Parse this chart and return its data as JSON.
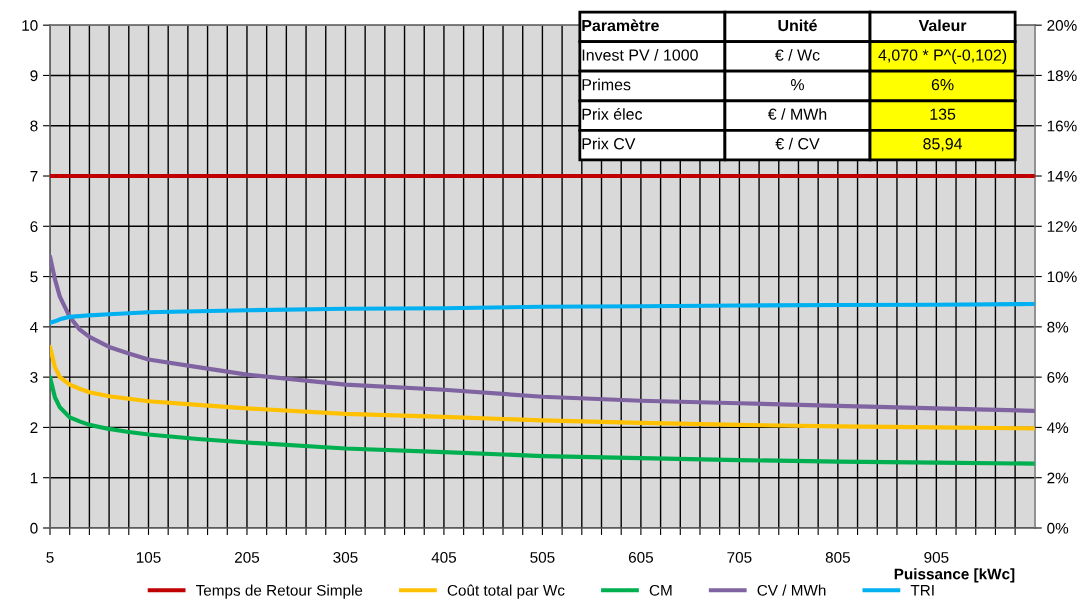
{
  "chart_data": {
    "type": "line",
    "xlabel": "Puissance [kWc]",
    "xlim": [
      5,
      1005
    ],
    "xticks": [
      5,
      {
        "value": 25,
        "label": null
      },
      {
        "value": 45,
        "label": null
      },
      {
        "value": 65,
        "label": null
      },
      {
        "value": 85,
        "label": null
      },
      105,
      {
        "value": 125,
        "label": null
      },
      {
        "value": 145,
        "label": null
      },
      {
        "value": 165,
        "label": null
      },
      {
        "value": 185,
        "label": null
      },
      205,
      {
        "value": 225,
        "label": null
      },
      {
        "value": 245,
        "label": null
      },
      {
        "value": 265,
        "label": null
      },
      {
        "value": 285,
        "label": null
      },
      305,
      {
        "value": 325,
        "label": null
      },
      {
        "value": 345,
        "label": null
      },
      {
        "value": 365,
        "label": null
      },
      {
        "value": 385,
        "label": null
      },
      405,
      {
        "value": 425,
        "label": null
      },
      {
        "value": 445,
        "label": null
      },
      {
        "value": 465,
        "label": null
      },
      {
        "value": 485,
        "label": null
      },
      505,
      {
        "value": 525,
        "label": null
      },
      {
        "value": 545,
        "label": null
      },
      {
        "value": 565,
        "label": null
      },
      {
        "value": 585,
        "label": null
      },
      605,
      {
        "value": 625,
        "label": null
      },
      {
        "value": 645,
        "label": null
      },
      {
        "value": 665,
        "label": null
      },
      {
        "value": 685,
        "label": null
      },
      705,
      {
        "value": 725,
        "label": null
      },
      {
        "value": 745,
        "label": null
      },
      {
        "value": 765,
        "label": null
      },
      {
        "value": 785,
        "label": null
      },
      805,
      {
        "value": 825,
        "label": null
      },
      {
        "value": 845,
        "label": null
      },
      {
        "value": 865,
        "label": null
      },
      {
        "value": 885,
        "label": null
      },
      905,
      {
        "value": 925,
        "label": null
      },
      {
        "value": 945,
        "label": null
      },
      {
        "value": 965,
        "label": null
      },
      {
        "value": 985,
        "label": null
      }
    ],
    "ylim": [
      0,
      10
    ],
    "yticks": [
      0,
      1,
      2,
      3,
      4,
      5,
      6,
      7,
      8,
      9,
      10
    ],
    "y2lim": [
      0,
      20
    ],
    "y2ticks": [
      {
        "value": 0,
        "label": "0%"
      },
      {
        "value": 2,
        "label": "2%"
      },
      {
        "value": 4,
        "label": "4%"
      },
      {
        "value": 6,
        "label": "6%"
      },
      {
        "value": 8,
        "label": "8%"
      },
      {
        "value": 10,
        "label": "10%"
      },
      {
        "value": 12,
        "label": "12%"
      },
      {
        "value": 14,
        "label": "14%"
      },
      {
        "value": 16,
        "label": "16%"
      },
      {
        "value": 18,
        "label": "18%"
      },
      {
        "value": 20,
        "label": "20%"
      }
    ],
    "x": [
      5,
      10,
      15,
      25,
      35,
      45,
      65,
      85,
      105,
      155,
      205,
      305,
      405,
      505,
      605,
      705,
      805,
      905,
      1004
    ],
    "series": [
      {
        "name": "Temps de Retour Simple",
        "color": "#c00000",
        "values": [
          7,
          7,
          7,
          7,
          7,
          7,
          7,
          7,
          7,
          7,
          7,
          7,
          7,
          7,
          7,
          7,
          7,
          7,
          7
        ]
      },
      {
        "name": "Coût total par Wc",
        "color": "#ffc000",
        "values": [
          3.6,
          3.2,
          3.0,
          2.85,
          2.77,
          2.7,
          2.62,
          2.57,
          2.52,
          2.45,
          2.38,
          2.27,
          2.21,
          2.14,
          2.09,
          2.05,
          2.02,
          2.0,
          1.98
        ]
      },
      {
        "name": "CM",
        "color": "#00b050",
        "values": [
          3.0,
          2.6,
          2.4,
          2.2,
          2.12,
          2.05,
          1.97,
          1.91,
          1.86,
          1.77,
          1.7,
          1.58,
          1.51,
          1.43,
          1.39,
          1.35,
          1.32,
          1.3,
          1.28
        ]
      },
      {
        "name": "CV / MWh",
        "color": "#8064a2",
        "values": [
          5.4,
          4.95,
          4.6,
          4.2,
          3.95,
          3.8,
          3.6,
          3.47,
          3.35,
          3.2,
          3.05,
          2.85,
          2.75,
          2.61,
          2.53,
          2.48,
          2.43,
          2.38,
          2.33
        ]
      },
      {
        "name": "TRI",
        "color": "#00b0f0",
        "axis": "y2",
        "values": [
          8.16,
          8.22,
          8.3,
          8.4,
          8.43,
          8.46,
          8.5,
          8.54,
          8.58,
          8.62,
          8.66,
          8.72,
          8.74,
          8.8,
          8.82,
          8.85,
          8.87,
          8.88,
          8.91
        ]
      }
    ],
    "annotations": [
      "Paramètre",
      "Unité",
      "Valeur",
      "Invest PV / 1000",
      "€ / Wc",
      "4,070 * P^(-0,102)",
      "Primes",
      "%",
      "6%",
      "Prix élec",
      "€ / MWh",
      "135",
      "Prix CV",
      "€ / CV",
      "85,94"
    ],
    "grid": true,
    "legend": "bottom",
    "marker": "none",
    "line_style": "solid"
  }
}
